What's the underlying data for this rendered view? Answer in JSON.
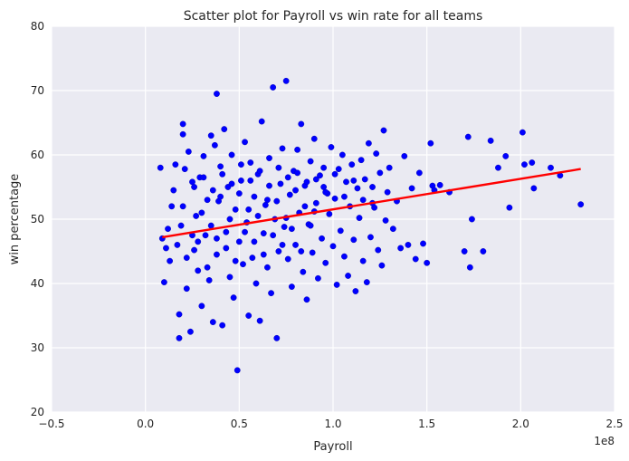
{
  "chart_data": {
    "type": "scatter",
    "title": "Scatter plot for Payroll vs win rate for all teams",
    "xlabel": "Payroll",
    "ylabel": "win percentage",
    "x_multiplier_label": "1e8",
    "xlim": [
      -0.5,
      2.5
    ],
    "ylim": [
      20,
      80
    ],
    "x_ticks": [
      -0.5,
      0.0,
      0.5,
      1.0,
      1.5,
      2.0,
      2.5
    ],
    "x_tick_labels": [
      "−0.5",
      "0.0",
      "0.5",
      "1.0",
      "1.5",
      "2.0",
      "2.5"
    ],
    "y_ticks": [
      20,
      30,
      40,
      50,
      60,
      70,
      80
    ],
    "y_tick_labels": [
      "20",
      "30",
      "40",
      "50",
      "60",
      "70",
      "80"
    ],
    "grid": true,
    "colors": {
      "background": "#eaeaf2",
      "grid": "#ffffff",
      "points": "#0000ff",
      "fit_line": "#ff0000"
    },
    "points_cluster_summary": {
      "note_estimated": true,
      "x_range": [
        0.08,
        2.33
      ],
      "y_range": [
        26.5,
        71.5
      ]
    },
    "points": [
      [
        0.08,
        58.0
      ],
      [
        0.09,
        47.0
      ],
      [
        0.1,
        40.2
      ],
      [
        0.11,
        45.5
      ],
      [
        0.12,
        48.5
      ],
      [
        0.13,
        43.5
      ],
      [
        0.14,
        52.0
      ],
      [
        0.15,
        54.5
      ],
      [
        0.16,
        58.5
      ],
      [
        0.17,
        46.0
      ],
      [
        0.18,
        31.5
      ],
      [
        0.18,
        35.2
      ],
      [
        0.19,
        49.0
      ],
      [
        0.2,
        64.8
      ],
      [
        0.2,
        63.2
      ],
      [
        0.21,
        57.8
      ],
      [
        0.22,
        39.2
      ],
      [
        0.23,
        60.5
      ],
      [
        0.24,
        32.5
      ],
      [
        0.25,
        55.8
      ],
      [
        0.26,
        45.2
      ],
      [
        0.27,
        50.5
      ],
      [
        0.28,
        42.0
      ],
      [
        0.29,
        56.5
      ],
      [
        0.3,
        36.5
      ],
      [
        0.31,
        59.8
      ],
      [
        0.32,
        47.5
      ],
      [
        0.33,
        53.0
      ],
      [
        0.34,
        40.5
      ],
      [
        0.35,
        63.0
      ],
      [
        0.36,
        34.0
      ],
      [
        0.37,
        61.5
      ],
      [
        0.38,
        69.5
      ],
      [
        0.38,
        44.5
      ],
      [
        0.39,
        52.8
      ],
      [
        0.4,
        58.2
      ],
      [
        0.41,
        33.5
      ],
      [
        0.42,
        64.0
      ],
      [
        0.43,
        48.0
      ],
      [
        0.44,
        55.0
      ],
      [
        0.45,
        41.0
      ],
      [
        0.46,
        60.0
      ],
      [
        0.47,
        37.8
      ],
      [
        0.48,
        51.5
      ],
      [
        0.49,
        26.5
      ],
      [
        0.5,
        46.5
      ],
      [
        0.51,
        56.0
      ],
      [
        0.52,
        43.0
      ],
      [
        0.53,
        62.0
      ],
      [
        0.54,
        49.5
      ],
      [
        0.55,
        35.0
      ],
      [
        0.56,
        58.8
      ],
      [
        0.57,
        44.0
      ],
      [
        0.58,
        53.5
      ],
      [
        0.59,
        40.0
      ],
      [
        0.6,
        57.0
      ],
      [
        0.61,
        34.2
      ],
      [
        0.62,
        65.2
      ],
      [
        0.63,
        47.8
      ],
      [
        0.64,
        52.2
      ],
      [
        0.65,
        42.5
      ],
      [
        0.66,
        59.5
      ],
      [
        0.67,
        38.5
      ],
      [
        0.68,
        70.5
      ],
      [
        0.69,
        50.0
      ],
      [
        0.7,
        31.5
      ],
      [
        0.71,
        45.0
      ],
      [
        0.72,
        55.5
      ],
      [
        0.73,
        61.0
      ],
      [
        0.74,
        48.8
      ],
      [
        0.75,
        71.5
      ],
      [
        0.76,
        43.8
      ],
      [
        0.77,
        53.8
      ],
      [
        0.78,
        39.5
      ],
      [
        0.79,
        57.5
      ],
      [
        0.8,
        46.0
      ],
      [
        0.81,
        60.8
      ],
      [
        0.82,
        51.0
      ],
      [
        0.83,
        64.8
      ],
      [
        0.84,
        41.8
      ],
      [
        0.85,
        55.2
      ],
      [
        0.86,
        37.5
      ],
      [
        0.87,
        49.2
      ],
      [
        0.88,
        59.0
      ],
      [
        0.89,
        44.8
      ],
      [
        0.9,
        62.5
      ],
      [
        0.91,
        52.5
      ],
      [
        0.92,
        40.8
      ],
      [
        0.93,
        56.8
      ],
      [
        0.94,
        47.0
      ],
      [
        0.95,
        58.0
      ],
      [
        0.96,
        43.2
      ],
      [
        0.97,
        54.0
      ],
      [
        0.98,
        50.8
      ],
      [
        0.99,
        61.2
      ],
      [
        1.0,
        45.8
      ],
      [
        1.01,
        53.2
      ],
      [
        1.02,
        39.8
      ],
      [
        1.03,
        57.8
      ],
      [
        1.04,
        48.2
      ],
      [
        1.05,
        60.0
      ],
      [
        1.06,
        44.2
      ],
      [
        1.07,
        55.8
      ],
      [
        1.08,
        41.2
      ],
      [
        1.09,
        52.0
      ],
      [
        1.1,
        58.5
      ],
      [
        1.11,
        46.8
      ],
      [
        1.12,
        38.8
      ],
      [
        1.13,
        54.8
      ],
      [
        1.14,
        50.2
      ],
      [
        1.15,
        59.2
      ],
      [
        1.16,
        43.5
      ],
      [
        1.17,
        56.2
      ],
      [
        1.18,
        40.2
      ],
      [
        1.19,
        61.8
      ],
      [
        1.2,
        47.2
      ],
      [
        1.21,
        55.0
      ],
      [
        1.22,
        51.8
      ],
      [
        1.23,
        60.2
      ],
      [
        1.24,
        45.2
      ],
      [
        1.25,
        57.2
      ],
      [
        1.26,
        42.8
      ],
      [
        1.27,
        63.8
      ],
      [
        1.28,
        49.8
      ],
      [
        1.29,
        54.2
      ],
      [
        1.3,
        58.0
      ],
      [
        1.32,
        48.5
      ],
      [
        1.34,
        52.8
      ],
      [
        1.36,
        45.5
      ],
      [
        1.38,
        59.8
      ],
      [
        1.4,
        46.0
      ],
      [
        1.42,
        54.8
      ],
      [
        1.44,
        43.8
      ],
      [
        1.46,
        57.2
      ],
      [
        1.48,
        46.2
      ],
      [
        1.5,
        43.2
      ],
      [
        1.52,
        61.8
      ],
      [
        1.53,
        55.2
      ],
      [
        1.54,
        54.5
      ],
      [
        1.57,
        55.3
      ],
      [
        1.62,
        54.2
      ],
      [
        1.7,
        45.0
      ],
      [
        1.72,
        62.8
      ],
      [
        1.73,
        42.5
      ],
      [
        1.74,
        50.0
      ],
      [
        1.8,
        45.0
      ],
      [
        1.84,
        62.2
      ],
      [
        1.88,
        58.0
      ],
      [
        1.92,
        59.8
      ],
      [
        1.94,
        51.8
      ],
      [
        2.01,
        63.5
      ],
      [
        2.02,
        58.5
      ],
      [
        2.06,
        58.8
      ],
      [
        2.07,
        54.8
      ],
      [
        2.16,
        58.0
      ],
      [
        2.21,
        56.8
      ],
      [
        2.32,
        52.3
      ],
      [
        0.2,
        52.0
      ],
      [
        0.25,
        47.5
      ],
      [
        0.3,
        51.0
      ],
      [
        0.35,
        49.0
      ],
      [
        0.4,
        53.5
      ],
      [
        0.45,
        50.0
      ],
      [
        0.5,
        54.0
      ],
      [
        0.55,
        51.5
      ],
      [
        0.6,
        50.5
      ],
      [
        0.65,
        53.0
      ],
      [
        0.7,
        52.8
      ],
      [
        0.75,
        50.2
      ],
      [
        0.8,
        54.5
      ],
      [
        0.85,
        52.0
      ],
      [
        0.9,
        51.2
      ],
      [
        0.95,
        55.0
      ],
      [
        0.22,
        44.0
      ],
      [
        0.28,
        46.5
      ],
      [
        0.33,
        42.5
      ],
      [
        0.38,
        47.0
      ],
      [
        0.43,
        45.5
      ],
      [
        0.48,
        43.5
      ],
      [
        0.53,
        48.0
      ],
      [
        0.58,
        46.5
      ],
      [
        0.63,
        44.5
      ],
      [
        0.68,
        47.5
      ],
      [
        0.73,
        46.0
      ],
      [
        0.78,
        48.5
      ],
      [
        0.83,
        45.0
      ],
      [
        0.88,
        49.0
      ],
      [
        0.26,
        55.0
      ],
      [
        0.31,
        56.5
      ],
      [
        0.36,
        54.5
      ],
      [
        0.41,
        57.0
      ],
      [
        0.46,
        55.5
      ],
      [
        0.51,
        58.5
      ],
      [
        0.56,
        56.0
      ],
      [
        0.61,
        57.5
      ],
      [
        0.66,
        55.2
      ],
      [
        0.71,
        58.0
      ],
      [
        0.76,
        56.5
      ],
      [
        0.81,
        57.2
      ],
      [
        0.86,
        55.8
      ],
      [
        0.91,
        56.2
      ],
      [
        0.96,
        54.2
      ],
      [
        1.01,
        57.0
      ],
      [
        1.06,
        53.5
      ],
      [
        1.11,
        56.0
      ],
      [
        1.16,
        53.0
      ],
      [
        1.21,
        52.5
      ]
    ],
    "fit_line": {
      "x": [
        0.09,
        2.32
      ],
      "y": [
        47.2,
        57.8
      ]
    }
  }
}
